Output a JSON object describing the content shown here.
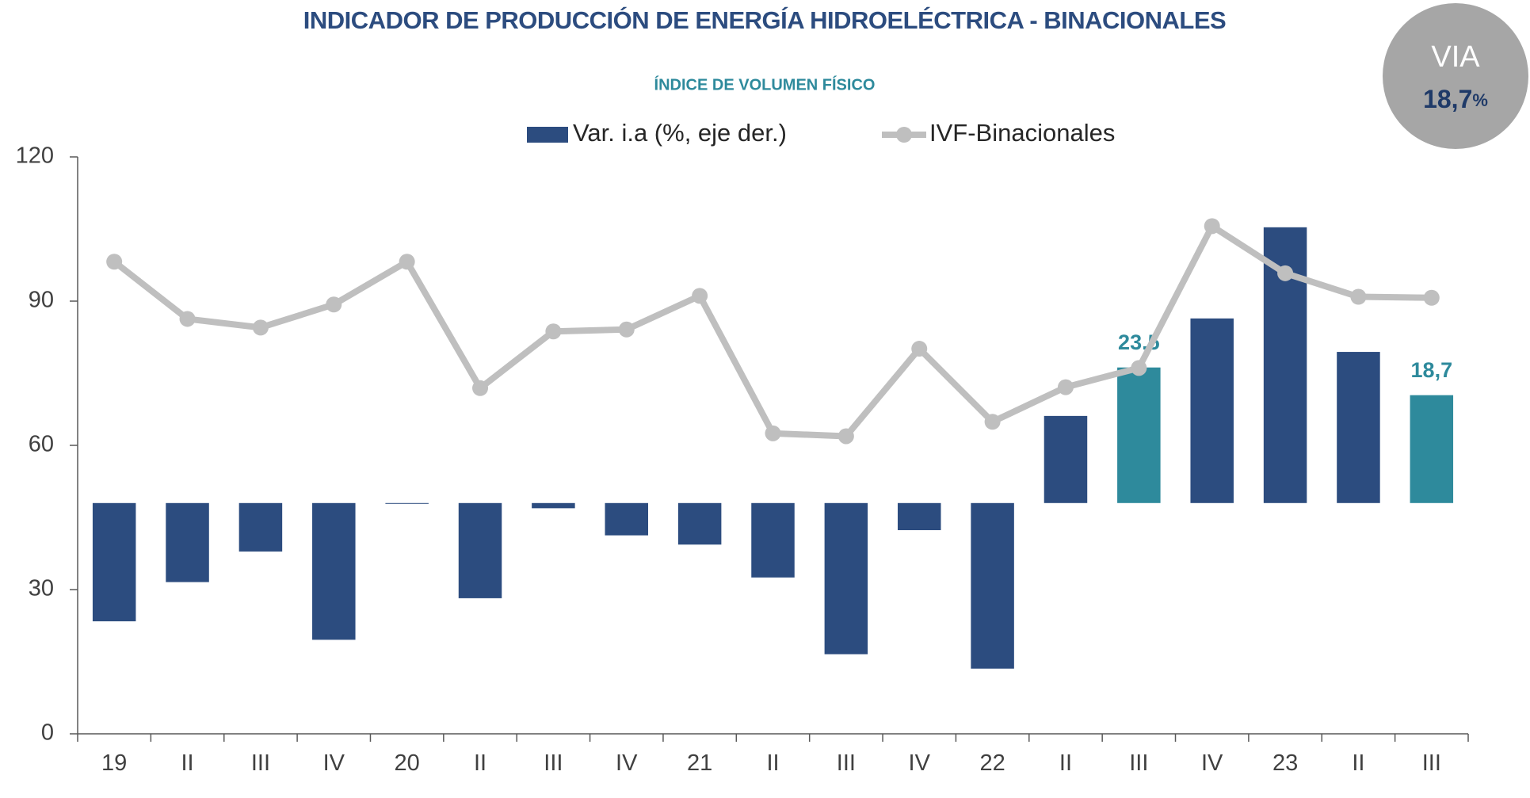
{
  "chart_data": {
    "type": "bar_line",
    "title": "INDICADOR DE PRODUCCIÓN DE ENERGÍA HIDROELÉCTRICA - BINACIONALES",
    "subtitle": "ÍNDICE DE VOLUMEN FÍSICO",
    "categories": [
      "19",
      "II",
      "III",
      "IV",
      "20",
      "II",
      "III",
      "IV",
      "21",
      "II",
      "III",
      "IV",
      "22",
      "II",
      "III",
      "IV",
      "23",
      "II",
      "III"
    ],
    "series": [
      {
        "name": "Var. i.a (%, eje der.)",
        "type": "bar",
        "axis": "y2",
        "color": "#2c4c7f",
        "colors": [
          "#2c4c7f",
          "#2c4c7f",
          "#2c4c7f",
          "#2c4c7f",
          "#2c4c7f",
          "#2c4c7f",
          "#2c4c7f",
          "#2c4c7f",
          "#2c4c7f",
          "#2c4c7f",
          "#2c4c7f",
          "#2c4c7f",
          "#2c4c7f",
          "#2c4c7f",
          "#2e8a9c",
          "#2c4c7f",
          "#2c4c7f",
          "#2c4c7f",
          "#2e8a9c"
        ],
        "values": [
          -20.5,
          -13.7,
          -8.4,
          -23.7,
          -0.1,
          -16.5,
          -0.9,
          -5.6,
          -7.2,
          -12.9,
          -26.2,
          -4.7,
          -28.7,
          15.1,
          23.5,
          32.0,
          47.8,
          26.2,
          18.7
        ],
        "value_labels": [
          null,
          null,
          null,
          null,
          null,
          null,
          null,
          null,
          null,
          null,
          null,
          null,
          null,
          null,
          "23,5",
          null,
          null,
          null,
          "18,7"
        ],
        "label_color": "#2e8a9c"
      },
      {
        "name": "IVF-Binacionales",
        "type": "line",
        "color": "#bfbfbf",
        "values": [
          98.2,
          86.3,
          84.5,
          89.3,
          98.2,
          71.9,
          83.7,
          84.1,
          91.1,
          62.5,
          61.9,
          80.1,
          64.9,
          72.1,
          76.1,
          105.6,
          95.8,
          90.9,
          90.7
        ]
      }
    ],
    "ylim": [
      0,
      120
    ],
    "yticks": [
      0,
      30,
      60,
      90,
      120
    ],
    "y2lim": [
      -40,
      60
    ]
  },
  "badge": {
    "label": "VIA",
    "value": "18,7",
    "unit": "%"
  }
}
